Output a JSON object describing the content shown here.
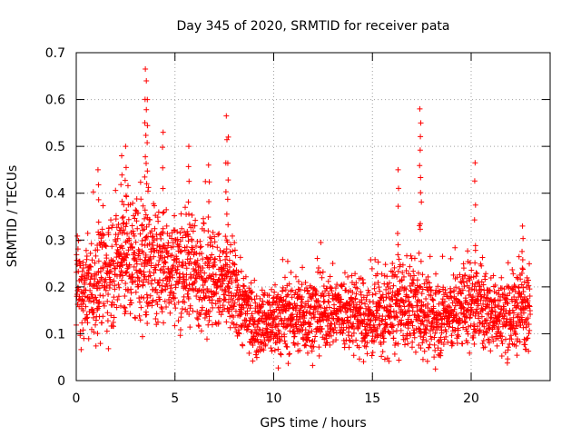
{
  "chart_data": {
    "type": "scatter",
    "title": "Day 345 of 2020, SRMTID for receiver pata",
    "xlabel": "GPS time / hours",
    "ylabel": "SRMTID / TECUs",
    "xlim": [
      0,
      24
    ],
    "ylim": [
      0,
      0.7
    ],
    "x_ticks": [
      0,
      5,
      10,
      15,
      20
    ],
    "y_ticks": [
      0,
      0.1,
      0.2,
      0.3,
      0.4,
      0.5,
      0.6,
      0.7
    ],
    "x_tick_labels": [
      "0",
      "5",
      "10",
      "15",
      "20"
    ],
    "y_tick_labels": [
      "0",
      "0.1",
      "0.2",
      "0.3",
      "0.4",
      "0.5",
      "0.6",
      "0.7"
    ],
    "grid": true,
    "marker": "+",
    "colors": {
      "series": "#ff0000",
      "grid": "#a0a0a0",
      "frame": "#000000"
    },
    "profile": {
      "description": "approximate typical level and spread per time segment",
      "x": [
        0,
        1,
        2,
        3,
        4,
        5,
        6,
        7,
        8,
        8.7,
        9,
        10,
        11,
        12,
        13,
        14,
        15,
        16,
        17,
        18,
        19,
        20,
        21,
        22,
        23
      ],
      "median": [
        0.19,
        0.2,
        0.25,
        0.26,
        0.24,
        0.24,
        0.24,
        0.21,
        0.19,
        0.14,
        0.12,
        0.13,
        0.14,
        0.14,
        0.15,
        0.14,
        0.13,
        0.15,
        0.16,
        0.13,
        0.14,
        0.17,
        0.14,
        0.14,
        0.17
      ],
      "spread": [
        0.06,
        0.07,
        0.08,
        0.09,
        0.08,
        0.07,
        0.07,
        0.07,
        0.06,
        0.05,
        0.04,
        0.05,
        0.05,
        0.05,
        0.05,
        0.05,
        0.05,
        0.06,
        0.06,
        0.05,
        0.05,
        0.06,
        0.05,
        0.05,
        0.06
      ]
    },
    "spikes": [
      {
        "x": 1.1,
        "y": 0.45
      },
      {
        "x": 2.3,
        "y": 0.48
      },
      {
        "x": 2.5,
        "y": 0.5
      },
      {
        "x": 3.5,
        "y": 0.665
      },
      {
        "x": 3.55,
        "y": 0.64
      },
      {
        "x": 3.6,
        "y": 0.6
      },
      {
        "x": 4.4,
        "y": 0.53
      },
      {
        "x": 5.7,
        "y": 0.5
      },
      {
        "x": 6.7,
        "y": 0.46
      },
      {
        "x": 7.6,
        "y": 0.565
      },
      {
        "x": 7.7,
        "y": 0.52
      },
      {
        "x": 16.3,
        "y": 0.45
      },
      {
        "x": 17.4,
        "y": 0.58
      },
      {
        "x": 17.45,
        "y": 0.55
      },
      {
        "x": 20.2,
        "y": 0.465
      },
      {
        "x": 22.6,
        "y": 0.33
      }
    ],
    "n_points": 2880
  }
}
